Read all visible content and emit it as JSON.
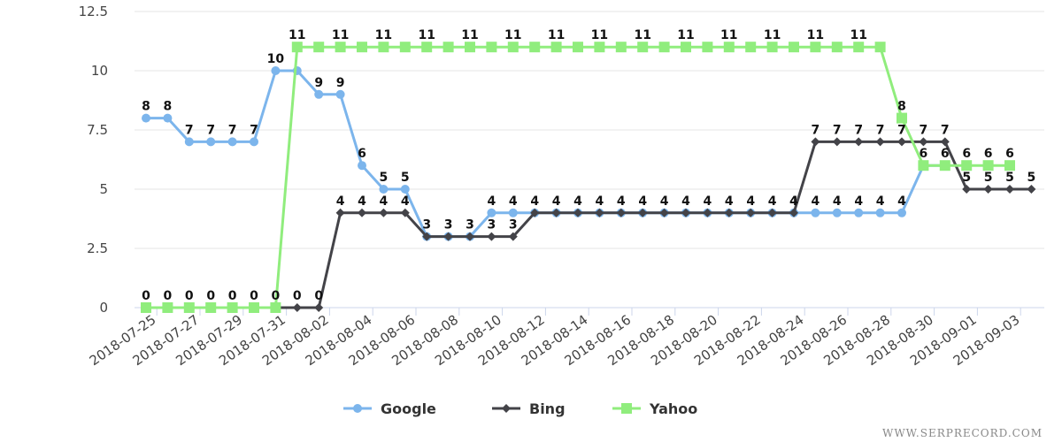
{
  "chart_data": {
    "type": "line",
    "x": [
      "2018-07-25",
      "2018-07-26",
      "2018-07-27",
      "2018-07-28",
      "2018-07-29",
      "2018-07-30",
      "2018-07-31",
      "2018-08-01",
      "2018-08-02",
      "2018-08-03",
      "2018-08-04",
      "2018-08-05",
      "2018-08-06",
      "2018-08-07",
      "2018-08-08",
      "2018-08-09",
      "2018-08-10",
      "2018-08-11",
      "2018-08-12",
      "2018-08-13",
      "2018-08-14",
      "2018-08-15",
      "2018-08-16",
      "2018-08-17",
      "2018-08-18",
      "2018-08-19",
      "2018-08-20",
      "2018-08-21",
      "2018-08-22",
      "2018-08-23",
      "2018-08-24",
      "2018-08-25",
      "2018-08-26",
      "2018-08-27",
      "2018-08-28",
      "2018-08-29",
      "2018-08-30",
      "2018-08-31",
      "2018-09-01",
      "2018-09-02",
      "2018-09-03",
      "2018-09-04"
    ],
    "x_tick_labels": [
      "2018-07-25",
      "2018-07-27",
      "2018-07-29",
      "2018-07-31",
      "2018-08-02",
      "2018-08-04",
      "2018-08-06",
      "2018-08-08",
      "2018-08-10",
      "2018-08-12",
      "2018-08-14",
      "2018-08-16",
      "2018-08-18",
      "2018-08-20",
      "2018-08-22",
      "2018-08-24",
      "2018-08-26",
      "2018-08-28",
      "2018-08-30",
      "2018-09-01",
      "2018-09-03"
    ],
    "y_ticks": [
      "0",
      "2.5",
      "5",
      "7.5",
      "10",
      "12.5"
    ],
    "ylim": [
      0,
      12.5
    ],
    "grid": "horizontal",
    "legend_position": "bottom-center",
    "series": [
      {
        "name": "Google",
        "color": "#7cb5ec",
        "marker": "circle",
        "values": [
          8,
          8,
          7,
          7,
          7,
          7,
          10,
          10,
          9,
          9,
          6,
          5,
          5,
          3,
          3,
          3,
          4,
          4,
          4,
          4,
          4,
          4,
          4,
          4,
          4,
          4,
          4,
          4,
          4,
          4,
          4,
          4,
          4,
          4,
          4,
          4,
          6,
          6,
          null,
          null,
          null,
          null
        ],
        "labels": [
          8,
          8,
          7,
          7,
          7,
          7,
          10,
          null,
          9,
          9,
          6,
          5,
          5,
          3,
          3,
          3,
          4,
          4,
          4,
          4,
          4,
          4,
          4,
          4,
          4,
          4,
          4,
          4,
          4,
          4,
          4,
          4,
          4,
          4,
          4,
          4,
          6,
          6,
          null,
          null,
          null,
          null
        ]
      },
      {
        "name": "Bing",
        "color": "#434348",
        "marker": "diamond",
        "values": [
          null,
          null,
          null,
          null,
          null,
          null,
          0,
          0,
          0,
          4,
          4,
          4,
          4,
          3,
          3,
          3,
          3,
          3,
          4,
          4,
          4,
          4,
          4,
          4,
          4,
          4,
          4,
          4,
          4,
          4,
          4,
          7,
          7,
          7,
          7,
          7,
          7,
          7,
          5,
          5,
          5,
          5
        ],
        "labels": [
          null,
          null,
          null,
          null,
          null,
          null,
          null,
          0,
          0,
          4,
          4,
          4,
          4,
          null,
          null,
          null,
          3,
          3,
          null,
          null,
          null,
          null,
          null,
          null,
          null,
          null,
          null,
          null,
          null,
          null,
          4,
          7,
          7,
          7,
          7,
          7,
          7,
          7,
          5,
          5,
          5,
          5
        ]
      },
      {
        "name": "Yahoo",
        "color": "#90ed7d",
        "marker": "square",
        "values": [
          0,
          0,
          0,
          0,
          0,
          0,
          0,
          11,
          11,
          11,
          11,
          11,
          11,
          11,
          11,
          11,
          11,
          11,
          11,
          11,
          11,
          11,
          11,
          11,
          11,
          11,
          11,
          11,
          11,
          11,
          11,
          11,
          11,
          11,
          11,
          8,
          6,
          6,
          6,
          6,
          6,
          null
        ],
        "labels": [
          0,
          0,
          0,
          0,
          0,
          0,
          0,
          11,
          null,
          11,
          null,
          11,
          null,
          11,
          null,
          11,
          null,
          11,
          null,
          11,
          null,
          11,
          null,
          11,
          null,
          11,
          null,
          11,
          null,
          11,
          null,
          11,
          null,
          11,
          null,
          8,
          null,
          null,
          6,
          6,
          6,
          null
        ]
      }
    ]
  },
  "watermark": "WWW.SERPRECORD.COM"
}
